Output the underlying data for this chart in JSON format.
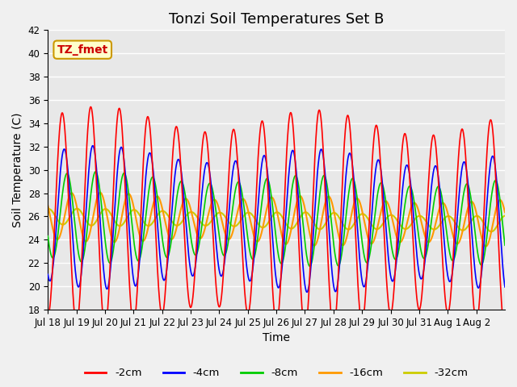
{
  "title": "Tonzi Soil Temperatures Set B",
  "xlabel": "Time",
  "ylabel": "Soil Temperature (C)",
  "ylim": [
    18,
    42
  ],
  "yticks": [
    18,
    20,
    22,
    24,
    26,
    28,
    30,
    32,
    34,
    36,
    38,
    40,
    42
  ],
  "n_days": 16,
  "xtick_labels": [
    "Jul 18",
    "Jul 19",
    "Jul 20",
    "Jul 21",
    "Jul 22",
    "Jul 23",
    "Jul 24",
    "Jul 25",
    "Jul 26",
    "Jul 27",
    "Jul 28",
    "Jul 29",
    "Jul 30",
    "Jul 31",
    "Aug 1",
    "Aug 2"
  ],
  "series_colors": [
    "#ff0000",
    "#0000ff",
    "#00cc00",
    "#ff9900",
    "#cccc00"
  ],
  "series_labels": [
    "-2cm",
    "-4cm",
    "-8cm",
    "-16cm",
    "-32cm"
  ],
  "annotation_text": "TZ_fmet",
  "annotation_bg": "#ffffcc",
  "annotation_border": "#cc9900",
  "annotation_text_color": "#cc0000",
  "axes_bg": "#e8e8e8",
  "fig_bg": "#f0f0f0",
  "grid_color": "#ffffff",
  "title_fontsize": 13,
  "axis_fontsize": 10,
  "tick_fontsize": 8.5,
  "legend_fontsize": 9.5,
  "amp_2cm": 8.5,
  "amp_4cm": 5.5,
  "amp_8cm": 3.5,
  "amp_16cm": 1.9,
  "amp_32cm": 0.65,
  "base_temp": 26.0,
  "base_drift": -0.04,
  "phase_4cm": 0.07,
  "phase_8cm": 0.17,
  "phase_16cm": 0.33,
  "phase_32cm": 0.52
}
